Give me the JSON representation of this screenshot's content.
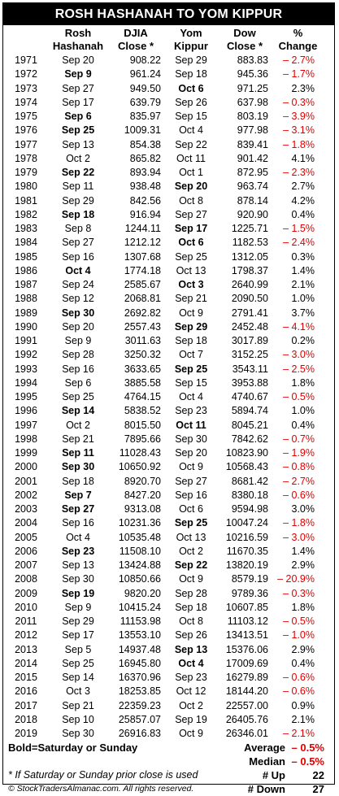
{
  "title": "ROSH HASHANAH TO YOM KIPPUR",
  "headers": {
    "rosh": [
      "Rosh",
      "Hashanah"
    ],
    "djia": [
      "DJIA",
      "Close *"
    ],
    "yom": [
      "Yom",
      "Kippur"
    ],
    "dow": [
      "Dow",
      "Close *"
    ],
    "chg": [
      "%",
      "Change"
    ]
  },
  "rows": [
    {
      "year": "1971",
      "rdate": "Sep 20",
      "rbold": false,
      "djia": "908.22",
      "ydate": "Sep 29",
      "ybold": false,
      "dow": "883.83",
      "chg": "– 2.7%",
      "neg": true
    },
    {
      "year": "1972",
      "rdate": "Sep 9",
      "rbold": true,
      "djia": "961.24",
      "ydate": "Sep 18",
      "ybold": false,
      "dow": "945.36",
      "chg": "– 1.7%",
      "neg": true
    },
    {
      "year": "1973",
      "rdate": "Sep 27",
      "rbold": false,
      "djia": "949.50",
      "ydate": "Oct 6",
      "ybold": true,
      "dow": "971.25",
      "chg": "2.3%",
      "neg": false
    },
    {
      "year": "1974",
      "rdate": "Sep 17",
      "rbold": false,
      "djia": "639.79",
      "ydate": "Sep 26",
      "ybold": false,
      "dow": "637.98",
      "chg": "– 0.3%",
      "neg": true
    },
    {
      "year": "1975",
      "rdate": "Sep 6",
      "rbold": true,
      "djia": "835.97",
      "ydate": "Sep 15",
      "ybold": false,
      "dow": "803.19",
      "chg": "– 3.9%",
      "neg": true
    },
    {
      "year": "1976",
      "rdate": "Sep 25",
      "rbold": true,
      "djia": "1009.31",
      "ydate": "Oct 4",
      "ybold": false,
      "dow": "977.98",
      "chg": "– 3.1%",
      "neg": true
    },
    {
      "year": "1977",
      "rdate": "Sep 13",
      "rbold": false,
      "djia": "854.38",
      "ydate": "Sep 22",
      "ybold": false,
      "dow": "839.41",
      "chg": "– 1.8%",
      "neg": true
    },
    {
      "year": "1978",
      "rdate": "Oct 2",
      "rbold": false,
      "djia": "865.82",
      "ydate": "Oct 11",
      "ybold": false,
      "dow": "901.42",
      "chg": "4.1%",
      "neg": false
    },
    {
      "year": "1979",
      "rdate": "Sep 22",
      "rbold": true,
      "djia": "893.94",
      "ydate": "Oct 1",
      "ybold": false,
      "dow": "872.95",
      "chg": "– 2.3%",
      "neg": true
    },
    {
      "year": "1980",
      "rdate": "Sep 11",
      "rbold": false,
      "djia": "938.48",
      "ydate": "Sep 20",
      "ybold": true,
      "dow": "963.74",
      "chg": "2.7%",
      "neg": false
    },
    {
      "year": "1981",
      "rdate": "Sep 29",
      "rbold": false,
      "djia": "842.56",
      "ydate": "Oct 8",
      "ybold": false,
      "dow": "878.14",
      "chg": "4.2%",
      "neg": false
    },
    {
      "year": "1982",
      "rdate": "Sep 18",
      "rbold": true,
      "djia": "916.94",
      "ydate": "Sep 27",
      "ybold": false,
      "dow": "920.90",
      "chg": "0.4%",
      "neg": false
    },
    {
      "year": "1983",
      "rdate": "Sep 8",
      "rbold": false,
      "djia": "1244.11",
      "ydate": "Sep 17",
      "ybold": true,
      "dow": "1225.71",
      "chg": "– 1.5%",
      "neg": true
    },
    {
      "year": "1984",
      "rdate": "Sep 27",
      "rbold": false,
      "djia": "1212.12",
      "ydate": "Oct 6",
      "ybold": true,
      "dow": "1182.53",
      "chg": "– 2.4%",
      "neg": true
    },
    {
      "year": "1985",
      "rdate": "Sep 16",
      "rbold": false,
      "djia": "1307.68",
      "ydate": "Sep 25",
      "ybold": false,
      "dow": "1312.05",
      "chg": "0.3%",
      "neg": false
    },
    {
      "year": "1986",
      "rdate": "Oct 4",
      "rbold": true,
      "djia": "1774.18",
      "ydate": "Oct 13",
      "ybold": false,
      "dow": "1798.37",
      "chg": "1.4%",
      "neg": false
    },
    {
      "year": "1987",
      "rdate": "Sep 24",
      "rbold": false,
      "djia": "2585.67",
      "ydate": "Oct 3",
      "ybold": true,
      "dow": "2640.99",
      "chg": "2.1%",
      "neg": false
    },
    {
      "year": "1988",
      "rdate": "Sep 12",
      "rbold": false,
      "djia": "2068.81",
      "ydate": "Sep 21",
      "ybold": false,
      "dow": "2090.50",
      "chg": "1.0%",
      "neg": false
    },
    {
      "year": "1989",
      "rdate": "Sep 30",
      "rbold": true,
      "djia": "2692.82",
      "ydate": "Oct 9",
      "ybold": false,
      "dow": "2791.41",
      "chg": "3.7%",
      "neg": false
    },
    {
      "year": "1990",
      "rdate": "Sep 20",
      "rbold": false,
      "djia": "2557.43",
      "ydate": "Sep 29",
      "ybold": true,
      "dow": "2452.48",
      "chg": "– 4.1%",
      "neg": true
    },
    {
      "year": "1991",
      "rdate": "Sep 9",
      "rbold": false,
      "djia": "3011.63",
      "ydate": "Sep 18",
      "ybold": false,
      "dow": "3017.89",
      "chg": "0.2%",
      "neg": false
    },
    {
      "year": "1992",
      "rdate": "Sep 28",
      "rbold": false,
      "djia": "3250.32",
      "ydate": "Oct 7",
      "ybold": false,
      "dow": "3152.25",
      "chg": "– 3.0%",
      "neg": true
    },
    {
      "year": "1993",
      "rdate": "Sep 16",
      "rbold": false,
      "djia": "3633.65",
      "ydate": "Sep 25",
      "ybold": true,
      "dow": "3543.11",
      "chg": "– 2.5%",
      "neg": true
    },
    {
      "year": "1994",
      "rdate": "Sep 6",
      "rbold": false,
      "djia": "3885.58",
      "ydate": "Sep 15",
      "ybold": false,
      "dow": "3953.88",
      "chg": "1.8%",
      "neg": false
    },
    {
      "year": "1995",
      "rdate": "Sep 25",
      "rbold": false,
      "djia": "4764.15",
      "ydate": "Oct 4",
      "ybold": false,
      "dow": "4740.67",
      "chg": "– 0.5%",
      "neg": true
    },
    {
      "year": "1996",
      "rdate": "Sep 14",
      "rbold": true,
      "djia": "5838.52",
      "ydate": "Sep 23",
      "ybold": false,
      "dow": "5894.74",
      "chg": "1.0%",
      "neg": false
    },
    {
      "year": "1997",
      "rdate": "Oct 2",
      "rbold": false,
      "djia": "8015.50",
      "ydate": "Oct 11",
      "ybold": true,
      "dow": "8045.21",
      "chg": "0.4%",
      "neg": false
    },
    {
      "year": "1998",
      "rdate": "Sep 21",
      "rbold": false,
      "djia": "7895.66",
      "ydate": "Sep 30",
      "ybold": false,
      "dow": "7842.62",
      "chg": "– 0.7%",
      "neg": true
    },
    {
      "year": "1999",
      "rdate": "Sep 11",
      "rbold": true,
      "djia": "11028.43",
      "ydate": "Sep 20",
      "ybold": false,
      "dow": "10823.90",
      "chg": "– 1.9%",
      "neg": true
    },
    {
      "year": "2000",
      "rdate": "Sep 30",
      "rbold": true,
      "djia": "10650.92",
      "ydate": "Oct 9",
      "ybold": false,
      "dow": "10568.43",
      "chg": "– 0.8%",
      "neg": true
    },
    {
      "year": "2001",
      "rdate": "Sep 18",
      "rbold": false,
      "djia": "8920.70",
      "ydate": "Sep 27",
      "ybold": false,
      "dow": "8681.42",
      "chg": "– 2.7%",
      "neg": true
    },
    {
      "year": "2002",
      "rdate": "Sep 7",
      "rbold": true,
      "djia": "8427.20",
      "ydate": "Sep 16",
      "ybold": false,
      "dow": "8380.18",
      "chg": "– 0.6%",
      "neg": true
    },
    {
      "year": "2003",
      "rdate": "Sep 27",
      "rbold": true,
      "djia": "9313.08",
      "ydate": "Oct 6",
      "ybold": false,
      "dow": "9594.98",
      "chg": "3.0%",
      "neg": false
    },
    {
      "year": "2004",
      "rdate": "Sep 16",
      "rbold": false,
      "djia": "10231.36",
      "ydate": "Sep 25",
      "ybold": true,
      "dow": "10047.24",
      "chg": "– 1.8%",
      "neg": true
    },
    {
      "year": "2005",
      "rdate": "Oct 4",
      "rbold": false,
      "djia": "10535.48",
      "ydate": "Oct 13",
      "ybold": false,
      "dow": "10216.59",
      "chg": "– 3.0%",
      "neg": true
    },
    {
      "year": "2006",
      "rdate": "Sep 23",
      "rbold": true,
      "djia": "11508.10",
      "ydate": "Oct 2",
      "ybold": false,
      "dow": "11670.35",
      "chg": "1.4%",
      "neg": false
    },
    {
      "year": "2007",
      "rdate": "Sep 13",
      "rbold": false,
      "djia": "13424.88",
      "ydate": "Sep 22",
      "ybold": true,
      "dow": "13820.19",
      "chg": "2.9%",
      "neg": false
    },
    {
      "year": "2008",
      "rdate": "Sep 30",
      "rbold": false,
      "djia": "10850.66",
      "ydate": "Oct 9",
      "ybold": false,
      "dow": "8579.19",
      "chg": "– 20.9%",
      "neg": true
    },
    {
      "year": "2009",
      "rdate": "Sep 19",
      "rbold": true,
      "djia": "9820.20",
      "ydate": "Sep 28",
      "ybold": false,
      "dow": "9789.36",
      "chg": "– 0.3%",
      "neg": true
    },
    {
      "year": "2010",
      "rdate": "Sep 9",
      "rbold": false,
      "djia": "10415.24",
      "ydate": "Sep 18",
      "ybold": false,
      "dow": "10607.85",
      "chg": "1.8%",
      "neg": false
    },
    {
      "year": "2011",
      "rdate": "Sep 29",
      "rbold": false,
      "djia": "11153.98",
      "ydate": "Oct 8",
      "ybold": false,
      "dow": "11103.12",
      "chg": "– 0.5%",
      "neg": true
    },
    {
      "year": "2012",
      "rdate": "Sep 17",
      "rbold": false,
      "djia": "13553.10",
      "ydate": "Sep 26",
      "ybold": false,
      "dow": "13413.51",
      "chg": "– 1.0%",
      "neg": true
    },
    {
      "year": "2013",
      "rdate": "Sep 5",
      "rbold": false,
      "djia": "14937.48",
      "ydate": "Sep 13",
      "ybold": true,
      "dow": "15376.06",
      "chg": "2.9%",
      "neg": false
    },
    {
      "year": "2014",
      "rdate": "Sep 25",
      "rbold": false,
      "djia": "16945.80",
      "ydate": "Oct 4",
      "ybold": true,
      "dow": "17009.69",
      "chg": "0.4%",
      "neg": false
    },
    {
      "year": "2015",
      "rdate": "Sep 14",
      "rbold": false,
      "djia": "16370.96",
      "ydate": "Sep 23",
      "ybold": false,
      "dow": "16279.89",
      "chg": "– 0.6%",
      "neg": true
    },
    {
      "year": "2016",
      "rdate": "Oct 3",
      "rbold": false,
      "djia": "18253.85",
      "ydate": "Oct 12",
      "ybold": false,
      "dow": "18144.20",
      "chg": "– 0.6%",
      "neg": true
    },
    {
      "year": "2017",
      "rdate": "Sep 21",
      "rbold": false,
      "djia": "22359.23",
      "ydate": "Oct 2",
      "ybold": false,
      "dow": "22557.00",
      "chg": "0.9%",
      "neg": false
    },
    {
      "year": "2018",
      "rdate": "Sep 10",
      "rbold": false,
      "djia": "25857.07",
      "ydate": "Sep 19",
      "ybold": false,
      "dow": "26405.76",
      "chg": "2.1%",
      "neg": false
    },
    {
      "year": "2019",
      "rdate": "Sep 30",
      "rbold": false,
      "djia": "26916.83",
      "ydate": "Oct 9",
      "ybold": false,
      "dow": "26346.01",
      "chg": "– 2.1%",
      "neg": true
    }
  ],
  "footer": {
    "bold_note": "Bold=Saturday or Sunday",
    "prior_note": "* If Saturday or Sunday prior close is used",
    "copyright": "© StockTradersAlmanac.com. All rights reserved.",
    "average_label": "Average",
    "average_value": "– 0.5%",
    "median_label": "Median",
    "median_value": "– 0.5%",
    "up_label": "# Up",
    "up_value": "22",
    "down_label": "# Down",
    "down_value": "27"
  },
  "colors": {
    "negative": "#e00000",
    "title_bg": "#000000"
  }
}
